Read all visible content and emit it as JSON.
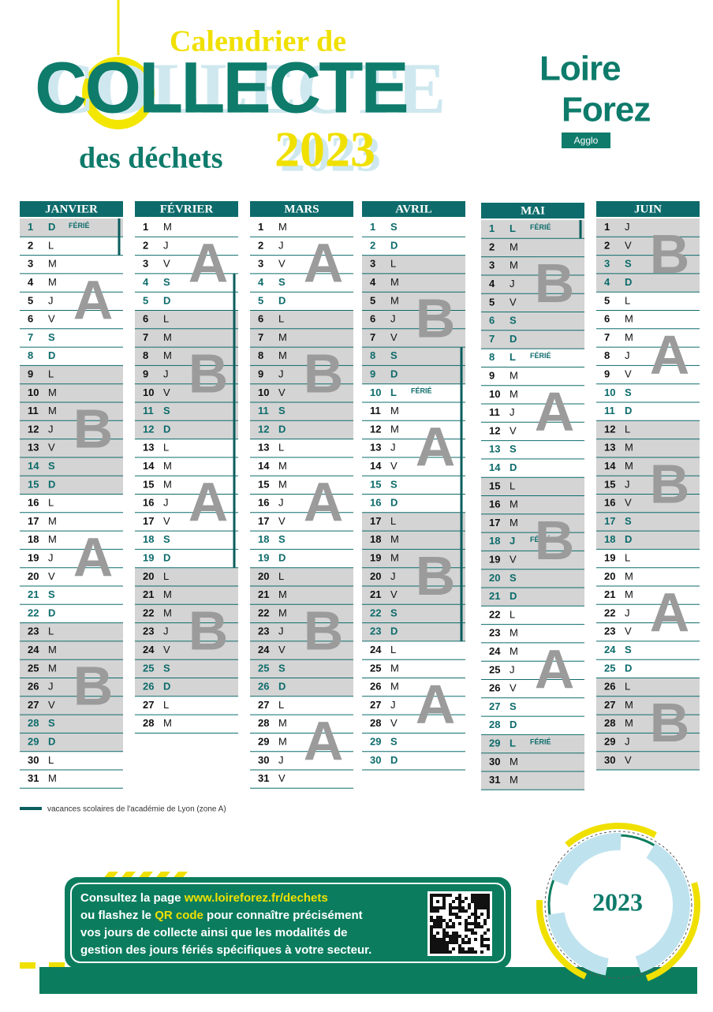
{
  "title": {
    "line1": "Calendrier de",
    "line2": "COLLECTE",
    "line3": "des déchets",
    "year": "2023"
  },
  "logo": {
    "line1": "Loire",
    "line2": "Forez",
    "sub": "Agglo"
  },
  "months": [
    {
      "name": "JANVIER",
      "vacation": [
        1,
        2
      ],
      "zones": [
        {
          "from": 1,
          "to": 1,
          "shade": true
        },
        {
          "label": "A",
          "from": 2,
          "to": 8,
          "shade": false
        },
        {
          "label": "B",
          "from": 9,
          "to": 15,
          "shade": true
        },
        {
          "label": "A",
          "from": 16,
          "to": 22,
          "shade": false
        },
        {
          "label": "B",
          "from": 23,
          "to": 29,
          "shade": true
        },
        {
          "from": 30,
          "to": 31,
          "shade": false
        }
      ],
      "days": [
        {
          "n": 1,
          "d": "D",
          "we": true,
          "note": "FÉRIÉ"
        },
        {
          "n": 2,
          "d": "L"
        },
        {
          "n": 3,
          "d": "M"
        },
        {
          "n": 4,
          "d": "M"
        },
        {
          "n": 5,
          "d": "J"
        },
        {
          "n": 6,
          "d": "V"
        },
        {
          "n": 7,
          "d": "S",
          "we": true
        },
        {
          "n": 8,
          "d": "D",
          "we": true
        },
        {
          "n": 9,
          "d": "L"
        },
        {
          "n": 10,
          "d": "M"
        },
        {
          "n": 11,
          "d": "M"
        },
        {
          "n": 12,
          "d": "J"
        },
        {
          "n": 13,
          "d": "V"
        },
        {
          "n": 14,
          "d": "S",
          "we": true
        },
        {
          "n": 15,
          "d": "D",
          "we": true
        },
        {
          "n": 16,
          "d": "L"
        },
        {
          "n": 17,
          "d": "M"
        },
        {
          "n": 18,
          "d": "M"
        },
        {
          "n": 19,
          "d": "J"
        },
        {
          "n": 20,
          "d": "V"
        },
        {
          "n": 21,
          "d": "S",
          "we": true
        },
        {
          "n": 22,
          "d": "D",
          "we": true
        },
        {
          "n": 23,
          "d": "L"
        },
        {
          "n": 24,
          "d": "M"
        },
        {
          "n": 25,
          "d": "M"
        },
        {
          "n": 26,
          "d": "J"
        },
        {
          "n": 27,
          "d": "V"
        },
        {
          "n": 28,
          "d": "S",
          "we": true
        },
        {
          "n": 29,
          "d": "D",
          "we": true
        },
        {
          "n": 30,
          "d": "L"
        },
        {
          "n": 31,
          "d": "M"
        }
      ]
    },
    {
      "name": "FÉVRIER",
      "vacation": [
        4,
        19
      ],
      "zones": [
        {
          "label": "A",
          "from": 1,
          "to": 5,
          "shade": false
        },
        {
          "label": "B",
          "from": 6,
          "to": 12,
          "shade": true
        },
        {
          "label": "A",
          "from": 13,
          "to": 19,
          "shade": false
        },
        {
          "label": "B",
          "from": 20,
          "to": 26,
          "shade": true
        },
        {
          "from": 27,
          "to": 28,
          "shade": false
        }
      ],
      "days": [
        {
          "n": 1,
          "d": "M"
        },
        {
          "n": 2,
          "d": "J"
        },
        {
          "n": 3,
          "d": "V"
        },
        {
          "n": 4,
          "d": "S",
          "we": true
        },
        {
          "n": 5,
          "d": "D",
          "we": true
        },
        {
          "n": 6,
          "d": "L"
        },
        {
          "n": 7,
          "d": "M"
        },
        {
          "n": 8,
          "d": "M"
        },
        {
          "n": 9,
          "d": "J"
        },
        {
          "n": 10,
          "d": "V"
        },
        {
          "n": 11,
          "d": "S",
          "we": true
        },
        {
          "n": 12,
          "d": "D",
          "we": true
        },
        {
          "n": 13,
          "d": "L"
        },
        {
          "n": 14,
          "d": "M"
        },
        {
          "n": 15,
          "d": "M"
        },
        {
          "n": 16,
          "d": "J"
        },
        {
          "n": 17,
          "d": "V"
        },
        {
          "n": 18,
          "d": "S",
          "we": true
        },
        {
          "n": 19,
          "d": "D",
          "we": true
        },
        {
          "n": 20,
          "d": "L"
        },
        {
          "n": 21,
          "d": "M"
        },
        {
          "n": 22,
          "d": "M"
        },
        {
          "n": 23,
          "d": "J"
        },
        {
          "n": 24,
          "d": "V"
        },
        {
          "n": 25,
          "d": "S",
          "we": true
        },
        {
          "n": 26,
          "d": "D",
          "we": true
        },
        {
          "n": 27,
          "d": "L"
        },
        {
          "n": 28,
          "d": "M"
        }
      ]
    },
    {
      "name": "MARS",
      "zones": [
        {
          "label": "A",
          "from": 1,
          "to": 5,
          "shade": false
        },
        {
          "label": "B",
          "from": 6,
          "to": 12,
          "shade": true
        },
        {
          "label": "A",
          "from": 13,
          "to": 19,
          "shade": false
        },
        {
          "label": "B",
          "from": 20,
          "to": 26,
          "shade": true
        },
        {
          "label": "A",
          "from": 27,
          "to": 31,
          "shade": false
        }
      ],
      "days": [
        {
          "n": 1,
          "d": "M"
        },
        {
          "n": 2,
          "d": "J"
        },
        {
          "n": 3,
          "d": "V"
        },
        {
          "n": 4,
          "d": "S",
          "we": true
        },
        {
          "n": 5,
          "d": "D",
          "we": true
        },
        {
          "n": 6,
          "d": "L"
        },
        {
          "n": 7,
          "d": "M"
        },
        {
          "n": 8,
          "d": "M"
        },
        {
          "n": 9,
          "d": "J"
        },
        {
          "n": 10,
          "d": "V"
        },
        {
          "n": 11,
          "d": "S",
          "we": true
        },
        {
          "n": 12,
          "d": "D",
          "we": true
        },
        {
          "n": 13,
          "d": "L"
        },
        {
          "n": 14,
          "d": "M"
        },
        {
          "n": 15,
          "d": "M"
        },
        {
          "n": 16,
          "d": "J"
        },
        {
          "n": 17,
          "d": "V"
        },
        {
          "n": 18,
          "d": "S",
          "we": true
        },
        {
          "n": 19,
          "d": "D",
          "we": true
        },
        {
          "n": 20,
          "d": "L"
        },
        {
          "n": 21,
          "d": "M"
        },
        {
          "n": 22,
          "d": "M"
        },
        {
          "n": 23,
          "d": "J"
        },
        {
          "n": 24,
          "d": "V"
        },
        {
          "n": 25,
          "d": "S",
          "we": true
        },
        {
          "n": 26,
          "d": "D",
          "we": true
        },
        {
          "n": 27,
          "d": "L"
        },
        {
          "n": 28,
          "d": "M"
        },
        {
          "n": 29,
          "d": "M"
        },
        {
          "n": 30,
          "d": "J"
        },
        {
          "n": 31,
          "d": "V"
        }
      ]
    },
    {
      "name": "AVRIL",
      "vacation": [
        8,
        23
      ],
      "zones": [
        {
          "from": 1,
          "to": 2,
          "shade": false
        },
        {
          "label": "B",
          "from": 3,
          "to": 9,
          "shade": true
        },
        {
          "label": "A",
          "from": 10,
          "to": 16,
          "shade": false
        },
        {
          "label": "B",
          "from": 17,
          "to": 23,
          "shade": true
        },
        {
          "label": "A",
          "from": 24,
          "to": 30,
          "shade": false
        }
      ],
      "days": [
        {
          "n": 1,
          "d": "S",
          "we": true
        },
        {
          "n": 2,
          "d": "D",
          "we": true
        },
        {
          "n": 3,
          "d": "L"
        },
        {
          "n": 4,
          "d": "M"
        },
        {
          "n": 5,
          "d": "M"
        },
        {
          "n": 6,
          "d": "J"
        },
        {
          "n": 7,
          "d": "V"
        },
        {
          "n": 8,
          "d": "S",
          "we": true
        },
        {
          "n": 9,
          "d": "D",
          "we": true
        },
        {
          "n": 10,
          "d": "L",
          "we": true,
          "note": "FÉRIÉ"
        },
        {
          "n": 11,
          "d": "M"
        },
        {
          "n": 12,
          "d": "M"
        },
        {
          "n": 13,
          "d": "J"
        },
        {
          "n": 14,
          "d": "V"
        },
        {
          "n": 15,
          "d": "S",
          "we": true
        },
        {
          "n": 16,
          "d": "D",
          "we": true
        },
        {
          "n": 17,
          "d": "L"
        },
        {
          "n": 18,
          "d": "M"
        },
        {
          "n": 19,
          "d": "M"
        },
        {
          "n": 20,
          "d": "J"
        },
        {
          "n": 21,
          "d": "V"
        },
        {
          "n": 22,
          "d": "S",
          "we": true
        },
        {
          "n": 23,
          "d": "D",
          "we": true
        },
        {
          "n": 24,
          "d": "L"
        },
        {
          "n": 25,
          "d": "M"
        },
        {
          "n": 26,
          "d": "M"
        },
        {
          "n": 27,
          "d": "J"
        },
        {
          "n": 28,
          "d": "V"
        },
        {
          "n": 29,
          "d": "S",
          "we": true
        },
        {
          "n": 30,
          "d": "D",
          "we": true
        }
      ]
    },
    {
      "name": "MAI",
      "vacation": [
        1,
        1
      ],
      "zones": [
        {
          "label": "B",
          "from": 1,
          "to": 7,
          "shade": true
        },
        {
          "label": "A",
          "from": 8,
          "to": 14,
          "shade": false
        },
        {
          "label": "B",
          "from": 15,
          "to": 21,
          "shade": true
        },
        {
          "label": "A",
          "from": 22,
          "to": 28,
          "shade": false
        },
        {
          "from": 29,
          "to": 31,
          "shade": true
        }
      ],
      "days": [
        {
          "n": 1,
          "d": "L",
          "we": true,
          "note": "FÉRIÉ"
        },
        {
          "n": 2,
          "d": "M"
        },
        {
          "n": 3,
          "d": "M"
        },
        {
          "n": 4,
          "d": "J"
        },
        {
          "n": 5,
          "d": "V"
        },
        {
          "n": 6,
          "d": "S",
          "we": true
        },
        {
          "n": 7,
          "d": "D",
          "we": true
        },
        {
          "n": 8,
          "d": "L",
          "we": true,
          "note": "FÉRIÉ"
        },
        {
          "n": 9,
          "d": "M"
        },
        {
          "n": 10,
          "d": "M"
        },
        {
          "n": 11,
          "d": "J"
        },
        {
          "n": 12,
          "d": "V"
        },
        {
          "n": 13,
          "d": "S",
          "we": true
        },
        {
          "n": 14,
          "d": "D",
          "we": true
        },
        {
          "n": 15,
          "d": "L"
        },
        {
          "n": 16,
          "d": "M"
        },
        {
          "n": 17,
          "d": "M"
        },
        {
          "n": 18,
          "d": "J",
          "we": true,
          "note": "FÉRIÉ"
        },
        {
          "n": 19,
          "d": "V"
        },
        {
          "n": 20,
          "d": "S",
          "we": true
        },
        {
          "n": 21,
          "d": "D",
          "we": true
        },
        {
          "n": 22,
          "d": "L"
        },
        {
          "n": 23,
          "d": "M"
        },
        {
          "n": 24,
          "d": "M"
        },
        {
          "n": 25,
          "d": "J"
        },
        {
          "n": 26,
          "d": "V"
        },
        {
          "n": 27,
          "d": "S",
          "we": true
        },
        {
          "n": 28,
          "d": "D",
          "we": true
        },
        {
          "n": 29,
          "d": "L",
          "we": true,
          "note": "FÉRIÉ"
        },
        {
          "n": 30,
          "d": "M"
        },
        {
          "n": 31,
          "d": "M"
        }
      ]
    },
    {
      "name": "JUIN",
      "zones": [
        {
          "label": "B",
          "from": 1,
          "to": 4,
          "shade": true
        },
        {
          "label": "A",
          "from": 5,
          "to": 11,
          "shade": false
        },
        {
          "label": "B",
          "from": 12,
          "to": 18,
          "shade": true
        },
        {
          "label": "A",
          "from": 19,
          "to": 25,
          "shade": false
        },
        {
          "label": "B",
          "from": 26,
          "to": 30,
          "shade": true
        }
      ],
      "days": [
        {
          "n": 1,
          "d": "J"
        },
        {
          "n": 2,
          "d": "V"
        },
        {
          "n": 3,
          "d": "S",
          "we": true
        },
        {
          "n": 4,
          "d": "D",
          "we": true
        },
        {
          "n": 5,
          "d": "L"
        },
        {
          "n": 6,
          "d": "M"
        },
        {
          "n": 7,
          "d": "M"
        },
        {
          "n": 8,
          "d": "J"
        },
        {
          "n": 9,
          "d": "V"
        },
        {
          "n": 10,
          "d": "S",
          "we": true
        },
        {
          "n": 11,
          "d": "D",
          "we": true
        },
        {
          "n": 12,
          "d": "L"
        },
        {
          "n": 13,
          "d": "M"
        },
        {
          "n": 14,
          "d": "M"
        },
        {
          "n": 15,
          "d": "J"
        },
        {
          "n": 16,
          "d": "V"
        },
        {
          "n": 17,
          "d": "S",
          "we": true
        },
        {
          "n": 18,
          "d": "D",
          "we": true
        },
        {
          "n": 19,
          "d": "L"
        },
        {
          "n": 20,
          "d": "M"
        },
        {
          "n": 21,
          "d": "M"
        },
        {
          "n": 22,
          "d": "J"
        },
        {
          "n": 23,
          "d": "V"
        },
        {
          "n": 24,
          "d": "S",
          "we": true
        },
        {
          "n": 25,
          "d": "D",
          "we": true
        },
        {
          "n": 26,
          "d": "L"
        },
        {
          "n": 27,
          "d": "M"
        },
        {
          "n": 28,
          "d": "M"
        },
        {
          "n": 29,
          "d": "J"
        },
        {
          "n": 30,
          "d": "V"
        }
      ]
    }
  ],
  "legend": "vacances scolaires de l'académie de Lyon (zone A)",
  "bottom": {
    "lines": [
      [
        {
          "t": "Consultez la page "
        },
        {
          "t": "www.loireforez.fr/dechets",
          "hl": true
        }
      ],
      [
        {
          "t": "ou flashez le "
        },
        {
          "t": "QR code",
          "hl": true
        },
        {
          "t": " pour connaître précisément"
        }
      ],
      [
        {
          "t": "vos jours de collecte ainsi que les modalités de"
        }
      ],
      [
        {
          "t": "gestion des jours fériés spécifiques à votre secteur."
        }
      ]
    ],
    "year": "2023"
  }
}
